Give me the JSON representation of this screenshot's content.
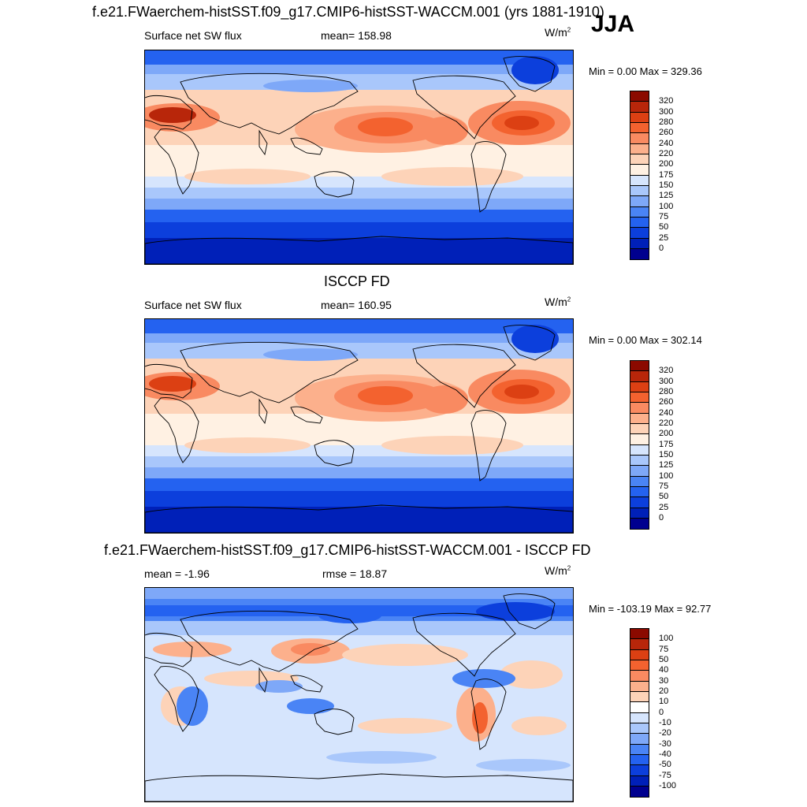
{
  "season": "JJA",
  "colors": {
    "main": [
      "#00008f",
      "#0020b8",
      "#0c3fdc",
      "#2462f0",
      "#4a84f5",
      "#7ea8f8",
      "#a9c7fb",
      "#d6e5fd",
      "#fff1e3",
      "#fdd3b8",
      "#fcb08c",
      "#f98a61",
      "#f3622f",
      "#dc4013",
      "#b8260a",
      "#8b0a00"
    ],
    "diff": [
      "#00008f",
      "#0020b8",
      "#0c3fdc",
      "#2462f0",
      "#4a84f5",
      "#7ea8f8",
      "#a9c7fb",
      "#d6e5fd",
      "#ffffff",
      "#fdd3b8",
      "#fcb08c",
      "#f98a61",
      "#f3622f",
      "#dc4013",
      "#b8260a",
      "#8b0a00"
    ]
  },
  "chart_data": [
    {
      "type": "heatmap",
      "title": "f.e21.FWaerchem-histSST.f09_g17.CMIP6-histSST-WACCM.001 (yrs 1881-1910)",
      "left_label": "Surface net SW flux",
      "center_label": "mean= 158.98",
      "units_base": "W/m",
      "units_exp": "2",
      "minmax": "Min =   0.00 Max = 329.36",
      "min": 0.0,
      "max": 329.36,
      "mean": 158.98,
      "levels": [
        "320",
        "300",
        "280",
        "260",
        "240",
        "220",
        "200",
        "175",
        "150",
        "125",
        "100",
        "75",
        "50",
        "25",
        "0"
      ]
    },
    {
      "type": "heatmap",
      "title": "ISCCP FD",
      "left_label": "Surface net SW flux",
      "center_label": "mean= 160.95",
      "units_base": "W/m",
      "units_exp": "2",
      "minmax": "Min =   0.00 Max = 302.14",
      "min": 0.0,
      "max": 302.14,
      "mean": 160.95,
      "levels": [
        "320",
        "300",
        "280",
        "260",
        "240",
        "220",
        "200",
        "175",
        "150",
        "125",
        "100",
        "75",
        "50",
        "25",
        "0"
      ]
    },
    {
      "type": "heatmap",
      "title": "f.e21.FWaerchem-histSST.f09_g17.CMIP6-histSST-WACCM.001 - ISCCP FD",
      "left_label": "mean =  -1.96",
      "center_label": "rmse =  18.87",
      "units_base": "W/m",
      "units_exp": "2",
      "minmax": "Min = -103.19 Max =  92.77",
      "min": -103.19,
      "max": 92.77,
      "mean": -1.96,
      "rmse": 18.87,
      "levels": [
        "100",
        "75",
        "50",
        "40",
        "30",
        "20",
        "10",
        "0",
        "-10",
        "-20",
        "-30",
        "-40",
        "-50",
        "-75",
        "-100"
      ]
    }
  ]
}
